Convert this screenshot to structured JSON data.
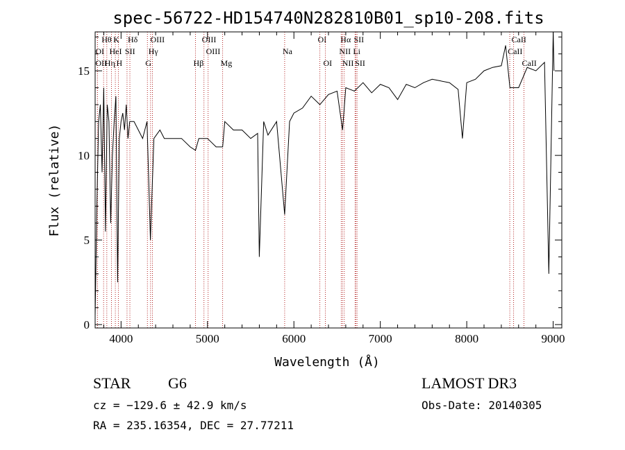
{
  "chart_data": {
    "type": "line",
    "title": "spec-56722-HD154740N282810B01_sp10-208.fits",
    "xlabel": "Wavelength (Å)",
    "ylabel": "Flux (relative)",
    "xlim": [
      3700,
      9100
    ],
    "ylim": [
      -0.2,
      17.3
    ],
    "xticks": [
      4000,
      5000,
      6000,
      7000,
      8000,
      9000
    ],
    "yticks": [
      0,
      5,
      10,
      15
    ],
    "line_color": "#000000",
    "marker_color": "#b22222",
    "series": [
      {
        "x": [
          3700,
          3720,
          3740,
          3760,
          3780,
          3800,
          3820,
          3840,
          3860,
          3880,
          3900,
          3920,
          3940,
          3960,
          3980,
          4000,
          4020,
          4040,
          4060,
          4080,
          4100,
          4150,
          4200,
          4250,
          4300,
          4340,
          4380,
          4450,
          4500,
          4600,
          4700,
          4800,
          4861,
          4900,
          5000,
          5100,
          5175,
          5200,
          5300,
          5400,
          5500,
          5580,
          5600,
          5650,
          5700,
          5800,
          5893,
          5950,
          6000,
          6100,
          6200,
          6300,
          6400,
          6500,
          6563,
          6600,
          6700,
          6800,
          6900,
          7000,
          7100,
          7200,
          7300,
          7400,
          7500,
          7600,
          7700,
          7800,
          7900,
          7950,
          8000,
          8100,
          8200,
          8300,
          8400,
          8450,
          8500,
          8600,
          8700,
          8800,
          8900,
          8950,
          9000,
          9010
        ],
        "y": [
          0.5,
          7,
          12,
          13,
          9,
          14,
          5.5,
          13,
          12,
          6,
          10,
          12,
          13.5,
          2.5,
          11,
          12,
          12.5,
          11.5,
          13,
          11,
          12,
          12,
          11.5,
          11,
          12,
          5,
          11,
          11.5,
          11,
          11,
          11,
          10.5,
          10.3,
          11,
          11,
          10.5,
          10.5,
          12,
          11.5,
          11.5,
          11,
          11.3,
          4,
          12,
          11.2,
          12,
          6.5,
          12,
          12.5,
          12.8,
          13.5,
          13,
          13.6,
          13.8,
          11.5,
          14,
          13.8,
          14.3,
          13.7,
          14.2,
          14,
          13.3,
          14.2,
          14,
          14.3,
          14.5,
          14.4,
          14.3,
          13.9,
          11,
          14.3,
          14.5,
          15,
          15.2,
          15.3,
          16.5,
          14,
          14,
          15.2,
          15,
          15.5,
          3,
          17.3,
          15
        ]
      }
    ],
    "lines": [
      {
        "label": "Hθ",
        "x": 3798,
        "row": 0
      },
      {
        "label": "OI",
        "x": 3727,
        "row": 1
      },
      {
        "label": "OII",
        "x": 3727,
        "row": 2
      },
      {
        "label": "Hη",
        "x": 3835,
        "row": 2
      },
      {
        "label": "K",
        "x": 3934,
        "row": 0
      },
      {
        "label": "HeI",
        "x": 3889,
        "row": 1
      },
      {
        "label": "H",
        "x": 3969,
        "row": 2
      },
      {
        "label": "Hδ",
        "x": 4102,
        "row": 0
      },
      {
        "label": "SII",
        "x": 4069,
        "row": 1
      },
      {
        "label": "OIII",
        "x": 4363,
        "row": 0
      },
      {
        "label": "Hγ",
        "x": 4341,
        "row": 1
      },
      {
        "label": "G",
        "x": 4305,
        "row": 2
      },
      {
        "label": "OIII",
        "x": 4959,
        "row": 0
      },
      {
        "label": "OIII",
        "x": 5007,
        "row": 1
      },
      {
        "label": "Hβ",
        "x": 4861,
        "row": 2
      },
      {
        "label": "Mg",
        "x": 5175,
        "row": 2
      },
      {
        "label": "Na",
        "x": 5893,
        "row": 1
      },
      {
        "label": "OI",
        "x": 6300,
        "row": 0
      },
      {
        "label": "OI",
        "x": 6364,
        "row": 2
      },
      {
        "label": "Hα",
        "x": 6563,
        "row": 0
      },
      {
        "label": "SII",
        "x": 6717,
        "row": 0
      },
      {
        "label": "NII",
        "x": 6548,
        "row": 1
      },
      {
        "label": "Li",
        "x": 6708,
        "row": 1
      },
      {
        "label": "NII",
        "x": 6583,
        "row": 2
      },
      {
        "label": "SII",
        "x": 6731,
        "row": 2
      },
      {
        "label": "CaII",
        "x": 8542,
        "row": 0
      },
      {
        "label": "CaII",
        "x": 8498,
        "row": 1
      },
      {
        "label": "CaII",
        "x": 8662,
        "row": 2
      }
    ]
  },
  "info": {
    "object_class": "STAR",
    "subclass": "G6",
    "survey": "LAMOST DR3",
    "redshift": "cz = −129.6 ± 42.9 km/s",
    "obs_date": "Obs-Date: 20140305",
    "coords": "RA = 235.16354, DEC =  27.77211"
  }
}
